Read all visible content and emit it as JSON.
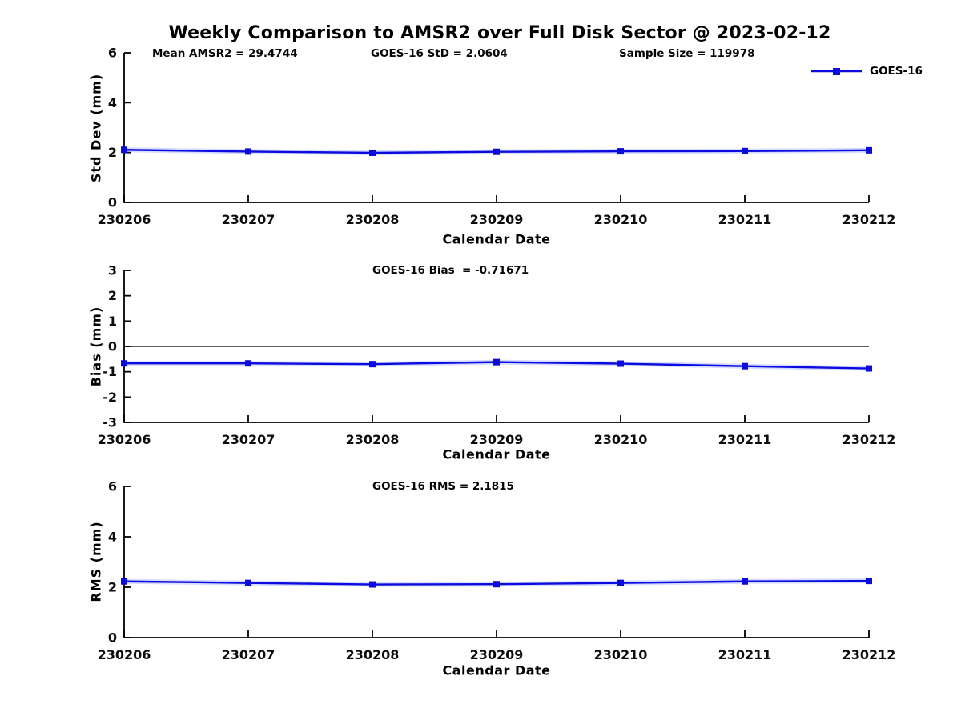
{
  "title": "Weekly Comparison to AMSR2 over Full Disk Sector @ 2023-02-12",
  "chart_data": [
    {
      "type": "line",
      "panel": "std-dev",
      "ylabel": "Std Dev (mm)",
      "xlabel": "Calendar Date",
      "ylim": [
        0,
        6
      ],
      "yticks": [
        0,
        2,
        4,
        6
      ],
      "categories": [
        "230206",
        "230207",
        "230208",
        "230209",
        "230210",
        "230211",
        "230212"
      ],
      "series": [
        {
          "name": "GOES-16",
          "values": [
            2.11,
            2.04,
            1.99,
            2.03,
            2.05,
            2.06,
            2.09
          ]
        }
      ],
      "annotations": [
        "Mean AMSR2 = 29.4744",
        "GOES-16 StD = 2.0604",
        "Sample Size = 119978"
      ],
      "legend_label": "GOES-16",
      "legend_position": "upper-right-outside",
      "zero_line": false,
      "grid": false
    },
    {
      "type": "line",
      "panel": "bias",
      "ylabel": "Bias (mm)",
      "xlabel": "Calendar Date",
      "ylim": [
        -3,
        3
      ],
      "yticks": [
        -3,
        -2,
        -1,
        0,
        1,
        2,
        3
      ],
      "categories": [
        "230206",
        "230207",
        "230208",
        "230209",
        "230210",
        "230211",
        "230212"
      ],
      "series": [
        {
          "name": "GOES-16",
          "values": [
            -0.67,
            -0.67,
            -0.7,
            -0.62,
            -0.68,
            -0.78,
            -0.87
          ]
        }
      ],
      "annotations": [
        "GOES-16 Bias  = -0.71671"
      ],
      "zero_line": true,
      "grid": false
    },
    {
      "type": "line",
      "panel": "rms",
      "ylabel": "RMS (mm)",
      "xlabel": "Calendar Date",
      "ylim": [
        0,
        6
      ],
      "yticks": [
        0,
        2,
        4,
        6
      ],
      "categories": [
        "230206",
        "230207",
        "230208",
        "230209",
        "230210",
        "230211",
        "230212"
      ],
      "series": [
        {
          "name": "GOES-16",
          "values": [
            2.23,
            2.17,
            2.11,
            2.12,
            2.17,
            2.23,
            2.25
          ]
        }
      ],
      "annotations": [
        "GOES-16 RMS = 2.1815"
      ],
      "zero_line": false,
      "grid": false
    }
  ],
  "colors": {
    "line": "#0b0bdd",
    "marker": "#0b0bdd",
    "axis": "#000000",
    "text": "#000000",
    "background": "#ffffff"
  }
}
